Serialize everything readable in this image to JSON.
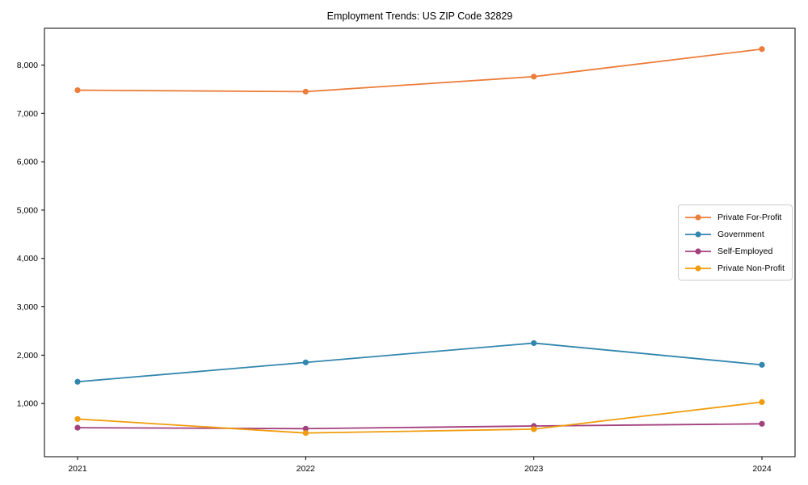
{
  "chart_data": {
    "type": "line",
    "title": "Employment Trends: US ZIP Code 32829",
    "xlabel": "",
    "ylabel": "",
    "categories": [
      "2021",
      "2022",
      "2023",
      "2024"
    ],
    "series": [
      {
        "name": "Private For-Profit",
        "color": "#ec7d3b",
        "values": [
          7480,
          7450,
          7760,
          8330
        ]
      },
      {
        "name": "Government",
        "color": "#3186ad",
        "values": [
          1450,
          1850,
          2250,
          1800
        ]
      },
      {
        "name": "Self-Employed",
        "color": "#a3407e",
        "values": [
          500,
          480,
          535,
          580
        ]
      },
      {
        "name": "Private Non-Profit",
        "color": "#f09c0c",
        "values": [
          680,
          390,
          470,
          1030
        ]
      }
    ],
    "yticks": [
      1000,
      2000,
      3000,
      4000,
      5000,
      6000,
      7000,
      8000
    ],
    "ytick_labels": [
      "1,000",
      "2,000",
      "3,000",
      "4,000",
      "5,000",
      "6,000",
      "7,000",
      "8,000"
    ],
    "ylim": [
      -100,
      8760
    ],
    "grid": false,
    "legend_position": "right",
    "axis_color": "#000000",
    "legend_border_color": "#cccccc",
    "background": "#ffffff"
  }
}
